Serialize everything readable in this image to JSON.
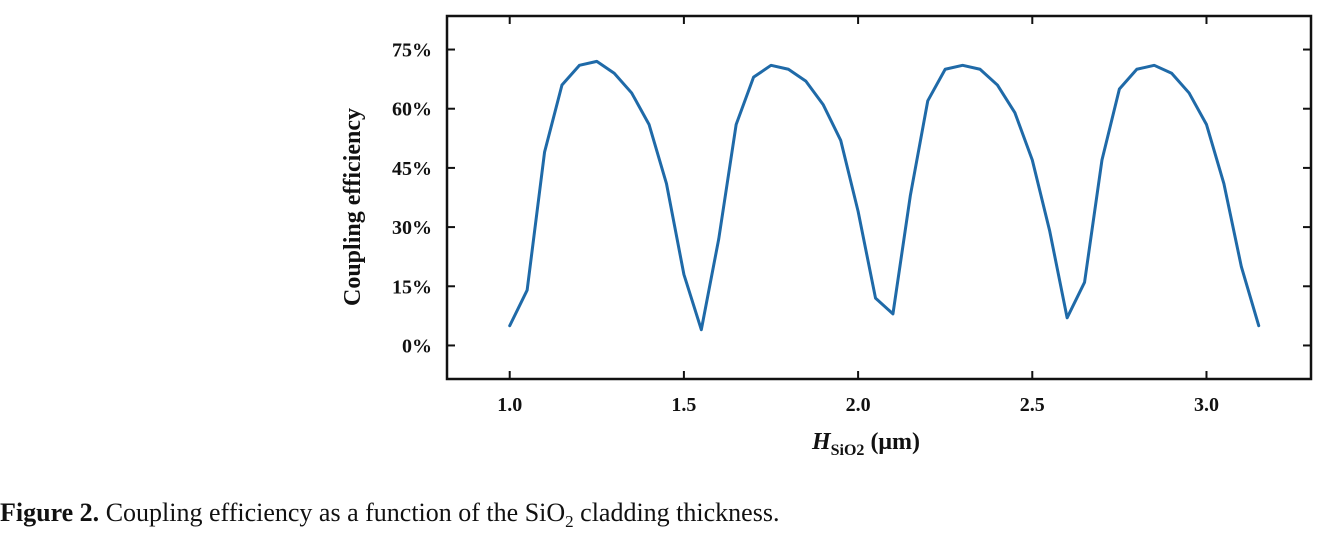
{
  "chart_data": {
    "type": "line",
    "title": "",
    "ylabel": "Coupling efficiency",
    "xlabel_main": "H",
    "xlabel_sub": "SiO2",
    "xlabel_unit": "(μm)",
    "xlim": [
      0.82,
      3.3
    ],
    "ylim": [
      -0.085,
      0.835
    ],
    "xticks": [
      1.0,
      1.5,
      2.0,
      2.5,
      3.0
    ],
    "xtick_labels": [
      "1.0",
      "1.5",
      "2.0",
      "2.5",
      "3.0"
    ],
    "yticks": [
      0,
      0.15,
      0.3,
      0.45,
      0.6,
      0.75
    ],
    "ytick_labels": [
      "0%",
      "15%",
      "30%",
      "45%",
      "60%",
      "75%"
    ],
    "grid": false,
    "line_color": "#1f6aa8",
    "series": [
      {
        "x": [
          1.0,
          1.05,
          1.1,
          1.15,
          1.2,
          1.25,
          1.3,
          1.35,
          1.4,
          1.45,
          1.5,
          1.55,
          1.6,
          1.65,
          1.7,
          1.75,
          1.8,
          1.85,
          1.9,
          1.95,
          2.0,
          2.05,
          2.1,
          2.15,
          2.2,
          2.25,
          2.3,
          2.35,
          2.4,
          2.45,
          2.5,
          2.55,
          2.6,
          2.65,
          2.7,
          2.75,
          2.8,
          2.85,
          2.9,
          2.95,
          3.0,
          3.05,
          3.1,
          3.15
        ],
        "y": [
          0.05,
          0.14,
          0.49,
          0.66,
          0.71,
          0.72,
          0.69,
          0.64,
          0.56,
          0.41,
          0.18,
          0.04,
          0.27,
          0.56,
          0.68,
          0.71,
          0.7,
          0.67,
          0.61,
          0.52,
          0.34,
          0.12,
          0.08,
          0.38,
          0.62,
          0.7,
          0.71,
          0.7,
          0.66,
          0.59,
          0.47,
          0.29,
          0.07,
          0.16,
          0.47,
          0.65,
          0.7,
          0.71,
          0.69,
          0.64,
          0.56,
          0.41,
          0.2,
          0.05
        ]
      }
    ]
  },
  "caption": {
    "label": "Figure 2.",
    "text_before": " Coupling efficiency as a function of the SiO",
    "subscript": "2",
    "text_after": " cladding thickness."
  }
}
